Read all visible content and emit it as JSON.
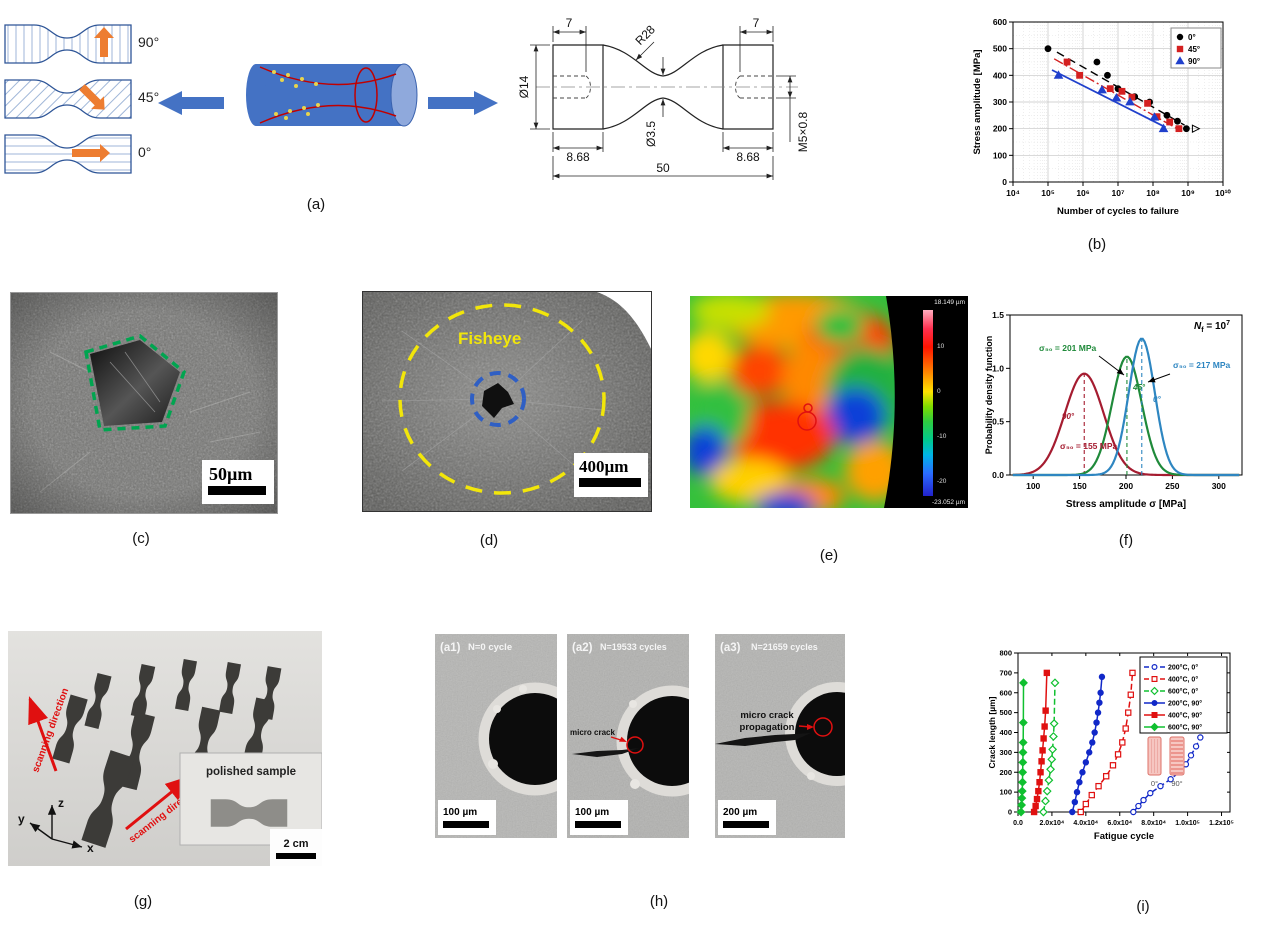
{
  "captions": {
    "a": "(a)",
    "b": "(b)",
    "c": "(c)",
    "d": "(d)",
    "e": "(e)",
    "f": "(f)",
    "g": "(g)",
    "h": "(h)",
    "i": "(i)"
  },
  "panel_a": {
    "orientations": [
      "90°",
      "45°",
      "0°"
    ],
    "drawing_dims": {
      "grip_top_left": "7",
      "grip_top_right": "7",
      "radius": "R28",
      "outer_diameter": "Ø14",
      "gauge_diameter": "Ø3.5",
      "grip_len_left": "8.68",
      "grip_len_right": "8.68",
      "total_length": "50",
      "thread": "M5×0.8"
    }
  },
  "panel_c": {
    "scale_label": "50µm"
  },
  "panel_d": {
    "region_label": "Fisheye",
    "scale_label": "400µm"
  },
  "panel_e": {
    "colorbar": {
      "max": "18.149 µm",
      "min": "-23.052 µm",
      "ticks": [
        "10",
        "0",
        "-10",
        "-20"
      ]
    }
  },
  "panel_g": {
    "scan_label": "scanning direction",
    "inset_label": "polished sample",
    "scale_label": "2 cm",
    "axes": [
      "z",
      "y",
      "x"
    ]
  },
  "panel_h": {
    "frames": [
      {
        "tag": "(a1)",
        "cycles": "N=0 cycle",
        "scale": "100 µm"
      },
      {
        "tag": "(a2)",
        "cycles": "N=19533 cycles",
        "scale": "100 µm",
        "annotation": "micro crack"
      },
      {
        "tag": "(a3)",
        "cycles": "N=21659 cycles",
        "scale": "200 µm",
        "annotation_line1": "micro crack",
        "annotation_line2": "propagation"
      }
    ]
  },
  "chart_data": [
    {
      "id": "b",
      "type": "scatter",
      "x_scale": "log",
      "xlabel": "Number of cycles to failure",
      "ylabel": "Stress amplitude [MPa]",
      "xlim_exp": [
        4,
        10
      ],
      "ylim": [
        0,
        600
      ],
      "xtick_labels": [
        "10⁴",
        "10⁵",
        "10⁶",
        "10⁷",
        "10⁸",
        "10⁹",
        "10¹⁰"
      ],
      "yticks": [
        0,
        100,
        200,
        300,
        400,
        500,
        600
      ],
      "legend_position": "top-right",
      "grid": true,
      "series": [
        {
          "name": "0°",
          "color": "#000000",
          "marker": "circle",
          "line": "dashed",
          "points": [
            [
              100000,
              500
            ],
            [
              2500000,
              450
            ],
            [
              5000000,
              400
            ],
            [
              10000000,
              350
            ],
            [
              30000000,
              320
            ],
            [
              80000000,
              300
            ],
            [
              250000000,
              250
            ],
            [
              500000000,
              228
            ],
            [
              900000000,
              200
            ]
          ],
          "fit": [
            [
              180000,
              487
            ],
            [
              800000000,
              213
            ]
          ]
        },
        {
          "name": "45°",
          "color": "#d42020",
          "marker": "square",
          "line": "dashdot",
          "points": [
            [
              350000,
              450
            ],
            [
              800000,
              400
            ],
            [
              6000000,
              350
            ],
            [
              13000000,
              340
            ],
            [
              25000000,
              318
            ],
            [
              70000000,
              295
            ],
            [
              130000000,
              245
            ],
            [
              300000000,
              225
            ],
            [
              550000000,
              200
            ]
          ],
          "fit": [
            [
              150000,
              462
            ],
            [
              550000000,
              196
            ]
          ]
        },
        {
          "name": "90°",
          "color": "#2040cc",
          "marker": "triangle",
          "line": "solid",
          "points": [
            [
              200000,
              400
            ],
            [
              3500000,
              345
            ],
            [
              9000000,
              315
            ],
            [
              22000000,
              300
            ],
            [
              110000000,
              243
            ],
            [
              200000000,
              200
            ]
          ],
          "fit": [
            [
              130000,
              420
            ],
            [
              230000000,
              205
            ]
          ]
        }
      ]
    },
    {
      "id": "f",
      "type": "line",
      "xlabel": "Stress amplitude σ [MPa]",
      "ylabel": "Probability density function",
      "xlim": [
        75,
        325
      ],
      "xticks": [
        100,
        150,
        200,
        250,
        300
      ],
      "ylim": [
        0,
        1.5
      ],
      "yticks": [
        0,
        0.5,
        1,
        1.5
      ],
      "nf": {
        "name": "N",
        "sub": "f",
        "eq": " = 10",
        "exp": "7"
      },
      "curves": [
        {
          "name": "90°",
          "color": "#a51c30",
          "mean": 155,
          "peak": 0.95,
          "sd": 21,
          "label": "σ₅₀ = 155 MPa"
        },
        {
          "name": "45°",
          "color": "#1f8a3a",
          "mean": 201,
          "peak": 1.11,
          "sd": 16,
          "label": "σ₅₀ = 201 MPa"
        },
        {
          "name": "0°",
          "color": "#2e86c1",
          "mean": 217,
          "peak": 1.28,
          "sd": 14,
          "label": "σ₅₀ = 217 MPa"
        }
      ]
    },
    {
      "id": "i",
      "type": "line",
      "xlabel": "Fatigue cycle",
      "ylabel": "Crack length [µm]",
      "xlim": [
        0,
        125000
      ],
      "ylim": [
        0,
        800
      ],
      "xticks": [
        0,
        20000,
        40000,
        60000,
        80000,
        100000,
        120000
      ],
      "xtick_labels": [
        "0.0",
        "2.0x10⁴",
        "4.0x10⁴",
        "6.0x10⁴",
        "8.0x10⁴",
        "1.0x10⁵",
        "1.2x10⁵"
      ],
      "yticks": [
        0,
        100,
        200,
        300,
        400,
        500,
        600,
        700,
        800
      ],
      "inset_labels": [
        "0°",
        "90°"
      ],
      "series": [
        {
          "name": "200°C, 0°",
          "color": "#1128c8",
          "marker": "circle",
          "filled": false,
          "dash": true,
          "points": [
            [
              68000,
              0
            ],
            [
              71000,
              30
            ],
            [
              74000,
              60
            ],
            [
              78000,
              95
            ],
            [
              84000,
              130
            ],
            [
              90000,
              165
            ],
            [
              95000,
              200
            ],
            [
              99000,
              240
            ],
            [
              102000,
              285
            ],
            [
              105000,
              330
            ],
            [
              107500,
              375
            ],
            [
              109500,
              420
            ],
            [
              111000,
              465
            ],
            [
              112500,
              510
            ],
            [
              114000,
              560
            ],
            [
              115000,
              610
            ],
            [
              116000,
              655
            ],
            [
              117000,
              695
            ]
          ]
        },
        {
          "name": "400°C, 0°",
          "color": "#e01010",
          "marker": "square",
          "filled": false,
          "dash": true,
          "points": [
            [
              37000,
              0
            ],
            [
              40000,
              40
            ],
            [
              43500,
              85
            ],
            [
              47500,
              130
            ],
            [
              52000,
              180
            ],
            [
              56000,
              235
            ],
            [
              59000,
              290
            ],
            [
              61500,
              350
            ],
            [
              63500,
              420
            ],
            [
              65000,
              500
            ],
            [
              66500,
              590
            ],
            [
              67500,
              700
            ]
          ]
        },
        {
          "name": "600°C, 0°",
          "color": "#10c030",
          "marker": "diamond",
          "filled": false,
          "dash": true,
          "points": [
            [
              15000,
              0
            ],
            [
              16200,
              55
            ],
            [
              17200,
              105
            ],
            [
              18200,
              160
            ],
            [
              19200,
              215
            ],
            [
              19900,
              265
            ],
            [
              20400,
              315
            ],
            [
              20900,
              380
            ],
            [
              21300,
              445
            ],
            [
              21800,
              650
            ]
          ]
        },
        {
          "name": "200°C, 90°",
          "color": "#1128c8",
          "marker": "circle",
          "filled": true,
          "dash": false,
          "points": [
            [
              32000,
              0
            ],
            [
              33500,
              50
            ],
            [
              34800,
              100
            ],
            [
              36200,
              150
            ],
            [
              38000,
              200
            ],
            [
              40000,
              250
            ],
            [
              42000,
              300
            ],
            [
              43800,
              350
            ],
            [
              45200,
              400
            ],
            [
              46300,
              450
            ],
            [
              47200,
              500
            ],
            [
              48000,
              550
            ],
            [
              48700,
              600
            ],
            [
              49500,
              680
            ]
          ]
        },
        {
          "name": "400°C, 90°",
          "color": "#e01010",
          "marker": "square",
          "filled": true,
          "dash": false,
          "points": [
            [
              9500,
              0
            ],
            [
              10400,
              30
            ],
            [
              11200,
              65
            ],
            [
              12000,
              105
            ],
            [
              12700,
              150
            ],
            [
              13300,
              200
            ],
            [
              13900,
              255
            ],
            [
              14500,
              310
            ],
            [
              15100,
              370
            ],
            [
              15700,
              430
            ],
            [
              16300,
              510
            ],
            [
              17000,
              700
            ]
          ]
        },
        {
          "name": "600°C, 90°",
          "color": "#10c030",
          "marker": "diamond",
          "filled": true,
          "dash": false,
          "points": [
            [
              1800,
              0
            ],
            [
              2100,
              35
            ],
            [
              2300,
              70
            ],
            [
              2500,
              105
            ],
            [
              2650,
              150
            ],
            [
              2750,
              200
            ],
            [
              2850,
              250
            ],
            [
              2950,
              300
            ],
            [
              3050,
              350
            ],
            [
              3150,
              450
            ],
            [
              3250,
              650
            ]
          ]
        }
      ]
    }
  ]
}
